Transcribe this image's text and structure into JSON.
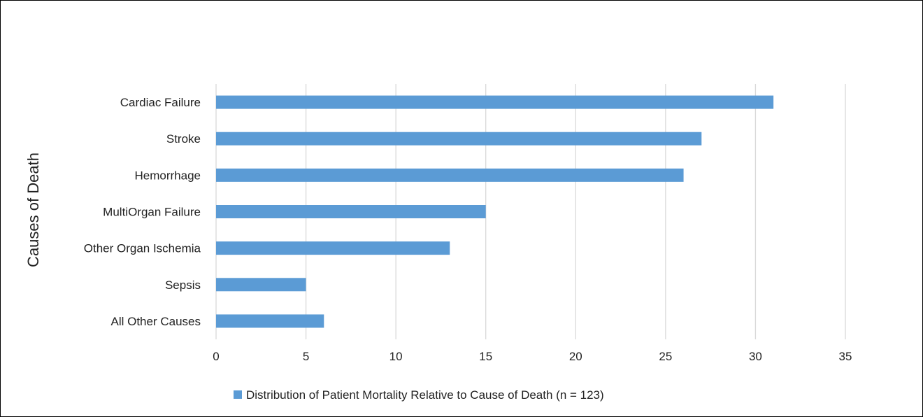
{
  "chart_data": {
    "type": "bar",
    "orientation": "horizontal",
    "title": "",
    "xlabel": "",
    "ylabel": "Causes of Death",
    "categories": [
      "Cardiac Failure",
      "Stroke",
      "Hemorrhage",
      "MultiOrgan Failure",
      "Other Organ Ischemia",
      "Sepsis",
      "All Other Causes"
    ],
    "series": [
      {
        "name": "Distribution of Patient Mortality Relative to Cause of Death (n = 123)",
        "values": [
          31,
          27,
          26,
          15,
          13,
          5,
          6
        ],
        "color": "#5B9BD5"
      }
    ],
    "xlim": [
      0,
      35
    ],
    "xticks": [
      "0",
      "5",
      "10",
      "15",
      "20",
      "25",
      "30",
      "35"
    ],
    "grid": "vertical",
    "legend": "bottom-center"
  }
}
